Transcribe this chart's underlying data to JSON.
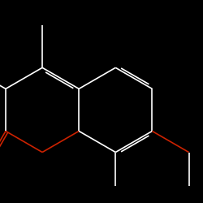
{
  "background_color": "#000000",
  "bond_color": "#ffffff",
  "oxygen_color": "#cc2200",
  "line_width": 1.2,
  "fig_width": 2.5,
  "fig_height": 2.5,
  "dpi": 100,
  "xlim": [
    -1.0,
    3.8
  ],
  "ylim": [
    -1.8,
    2.2
  ]
}
